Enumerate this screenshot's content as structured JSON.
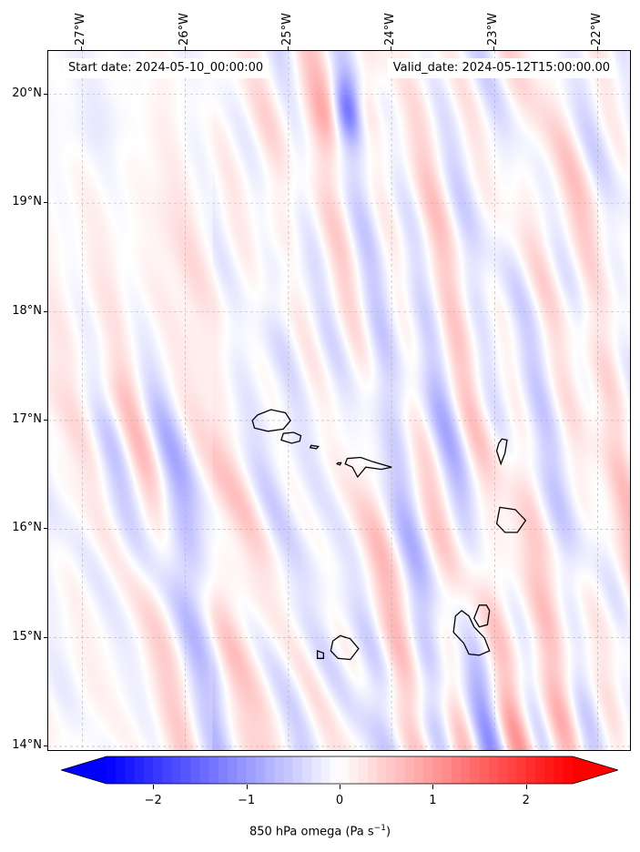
{
  "header": {
    "start_date": "Start date: 2024-05-10_00:00:00",
    "valid_date": "Valid_date: 2024-05-12T15:00:00.00"
  },
  "axes": {
    "lat_labels": [
      "20°N",
      "19°N",
      "18°N",
      "17°N",
      "16°N",
      "15°N",
      "14°N"
    ],
    "lon_labels": [
      "27°W",
      "26°W",
      "25°W",
      "24°W",
      "23°W",
      "22°W"
    ],
    "lat_values": [
      20,
      19,
      18,
      17,
      16,
      15,
      14
    ],
    "lon_values": [
      -27,
      -26,
      -25,
      -24,
      -23,
      -22
    ],
    "lat_range": [
      13.95,
      20.4
    ],
    "lon_range": [
      -27.33,
      -21.67
    ],
    "gridlines": true
  },
  "colorbar": {
    "title": "850 hPa omega (Pa s",
    "title_sup": "−1",
    "title_end": ")",
    "tick_labels": [
      "−2",
      "−1",
      "0",
      "1",
      "2"
    ],
    "tick_values": [
      -2,
      -1,
      0,
      1,
      2
    ],
    "range": [
      -2.5,
      2.5
    ],
    "extend": "both",
    "cmap": "bwr",
    "colors": {
      "min": "#0000ff",
      "mid": "#ffffff",
      "max": "#ff0000"
    }
  },
  "map": {
    "islands": [
      "Santo Antão",
      "São Vicente",
      "Santa Luzia",
      "São Nicolau",
      "Sal",
      "Boa Vista",
      "Maio",
      "Santiago",
      "Fogo",
      "Brava"
    ],
    "coastline_color": "#000000"
  }
}
